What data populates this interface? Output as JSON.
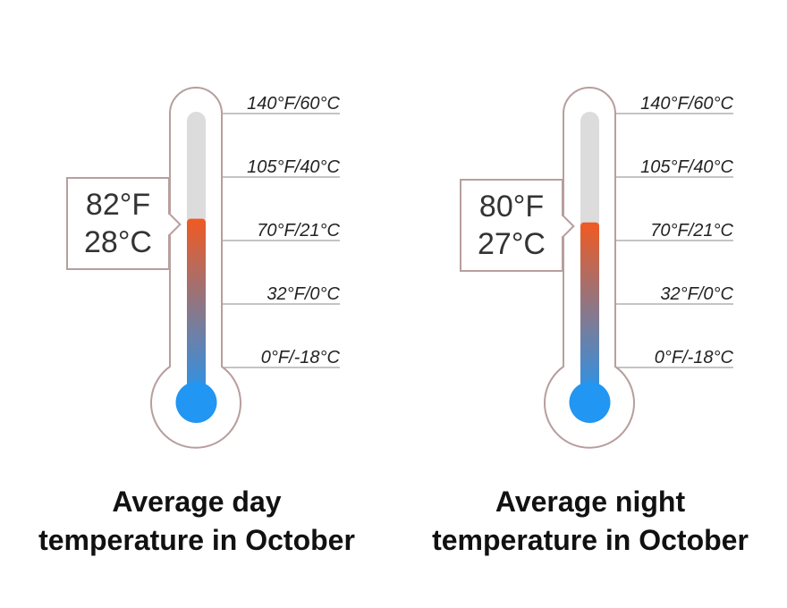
{
  "chart_data": [
    {
      "type": "thermometer",
      "scale_labels": [
        "140°F/60°C",
        "105°F/40°C",
        "70°F/21°C",
        "32°F/0°C",
        "0°F/-18°C"
      ],
      "value_f": 82,
      "value_c": 28,
      "reading": {
        "line1": "82°F",
        "line2": "28°C"
      },
      "caption": {
        "line1": "Average day",
        "line2": "temperature in October"
      }
    },
    {
      "type": "thermometer",
      "scale_labels": [
        "140°F/60°C",
        "105°F/40°C",
        "70°F/21°C",
        "32°F/0°C",
        "0°F/-18°C"
      ],
      "value_f": 80,
      "value_c": 27,
      "reading": {
        "line1": "80°F",
        "line2": "27°C"
      },
      "caption": {
        "line1": "Average night",
        "line2": "temperature in October"
      }
    }
  ],
  "colors": {
    "outline": "#b89e9e",
    "tube_empty": "#dcdcdc",
    "hot": "#f05a22",
    "cold": "#2196f3"
  }
}
